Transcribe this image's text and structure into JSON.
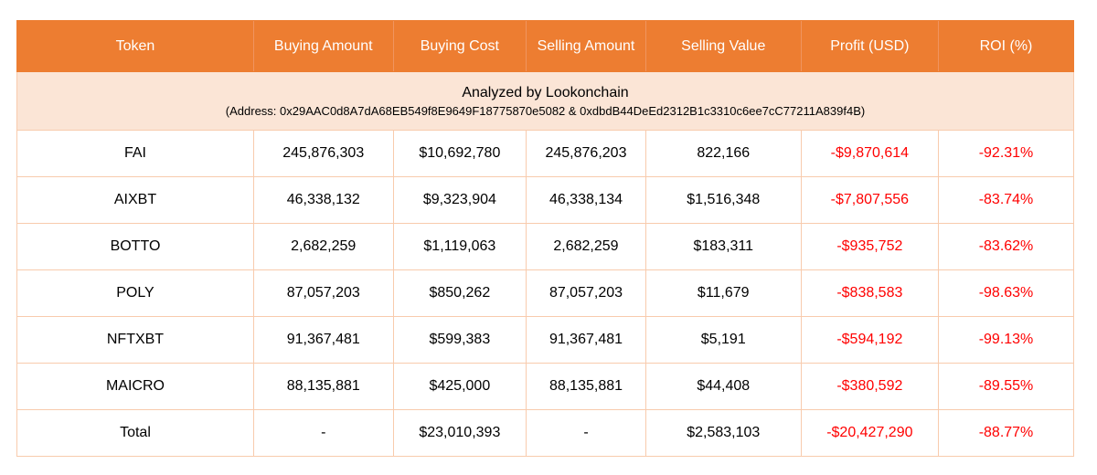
{
  "chart_data": {
    "type": "table",
    "title": "Analyzed by Lookonchain",
    "subtitle": "(Address: 0x29AAC0d8A7dA68EB549f8E9649F18775870e5082 & 0xdbdB44DeEd2312B1c3310c6ee7cC77211A839f4B)",
    "columns": [
      "Token",
      "Buying Amount",
      "Buying Cost",
      "Selling Amount",
      "Selling Value",
      "Profit (USD)",
      "ROI (%)"
    ],
    "rows": [
      [
        "FAI",
        "245,876,303",
        "$10,692,780",
        "245,876,203",
        "822,166",
        "-$9,870,614",
        "-92.31%"
      ],
      [
        "AIXBT",
        "46,338,132",
        "$9,323,904",
        "46,338,134",
        "$1,516,348",
        "-$7,807,556",
        "-83.74%"
      ],
      [
        "BOTTO",
        "2,682,259",
        "$1,119,063",
        "2,682,259",
        "$183,311",
        "-$935,752",
        "-83.62%"
      ],
      [
        "POLY",
        "87,057,203",
        "$850,262",
        "87,057,203",
        "$11,679",
        "-$838,583",
        "-98.63%"
      ],
      [
        "NFTXBT",
        "91,367,481",
        "$599,383",
        "91,367,481",
        "$5,191",
        "-$594,192",
        "-99.13%"
      ],
      [
        "MAICRO",
        "88,135,881",
        "$425,000",
        "88,135,881",
        "$44,408",
        "-$380,592",
        "-89.55%"
      ],
      [
        "Total",
        "-",
        "$23,010,393",
        "-",
        "$2,583,103",
        "-$20,427,290",
        "-88.77%"
      ]
    ],
    "colors": {
      "header_bg": "#ED7D31",
      "header_text": "#FFFFFF",
      "banner_bg": "#FBE5D6",
      "border": "#F8CBAD",
      "body_text": "#000000",
      "negative_text": "#FF0000"
    },
    "layout": {
      "legend": "none",
      "grid": "table-borders"
    }
  }
}
